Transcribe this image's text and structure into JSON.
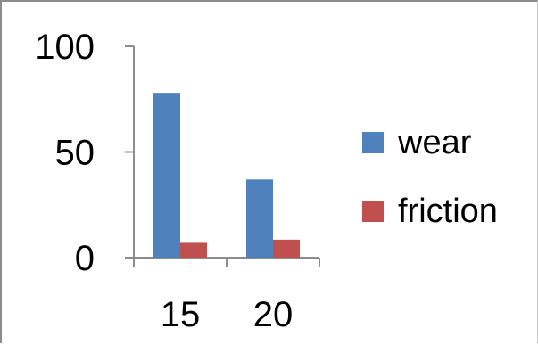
{
  "chart_data": {
    "type": "bar",
    "categories": [
      "15",
      "20"
    ],
    "series": [
      {
        "name": "wear",
        "values": [
          78,
          37
        ],
        "color": "#4f81bd"
      },
      {
        "name": "friction",
        "values": [
          7,
          8.5
        ],
        "color": "#c0504d"
      }
    ],
    "ylim": [
      0,
      100
    ],
    "yticks": [
      "0",
      "50",
      "100"
    ],
    "grid": false,
    "legend": "right"
  }
}
